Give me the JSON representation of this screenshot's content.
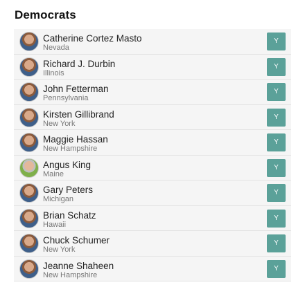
{
  "section": {
    "heading": "Democrats"
  },
  "senators": [
    {
      "name": "Catherine Cortez Masto",
      "state": "Nevada",
      "vote": "Y"
    },
    {
      "name": "Richard J. Durbin",
      "state": "Illinois",
      "vote": "Y"
    },
    {
      "name": "John Fetterman",
      "state": "Pennsylvania",
      "vote": "Y"
    },
    {
      "name": "Kirsten Gillibrand",
      "state": "New York",
      "vote": "Y"
    },
    {
      "name": "Maggie Hassan",
      "state": "New Hampshire",
      "vote": "Y"
    },
    {
      "name": "Angus King",
      "state": "Maine",
      "vote": "Y"
    },
    {
      "name": "Gary Peters",
      "state": "Michigan",
      "vote": "Y"
    },
    {
      "name": "Brian Schatz",
      "state": "Hawaii",
      "vote": "Y"
    },
    {
      "name": "Chuck Schumer",
      "state": "New York",
      "vote": "Y"
    },
    {
      "name": "Jeanne Shaheen",
      "state": "New Hampshire",
      "vote": "Y"
    }
  ],
  "colors": {
    "vote_yes": "#5ba199",
    "row_background": "#f5f5f5"
  }
}
